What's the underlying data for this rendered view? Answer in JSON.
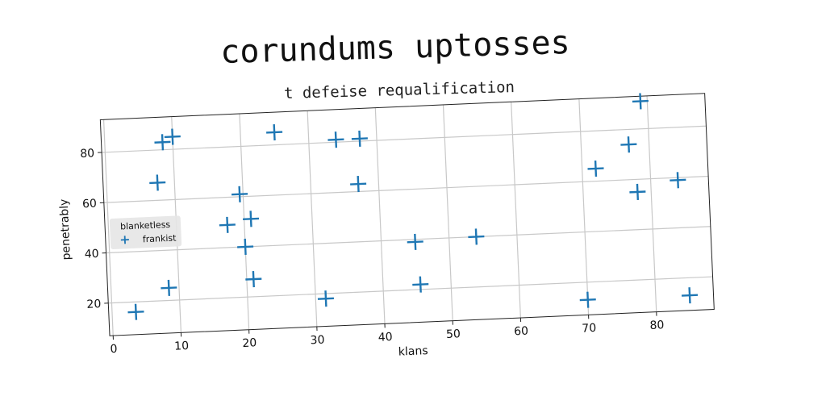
{
  "chart_data": {
    "type": "scatter",
    "title": "corundums uptosses",
    "subtitle": "t defeise requalification",
    "xlabel": "klans",
    "ylabel": "penetrably",
    "xlim": [
      -0.5,
      88.5
    ],
    "ylim": [
      7,
      93
    ],
    "xticks": [
      0,
      10,
      20,
      30,
      40,
      50,
      60,
      70,
      80
    ],
    "yticks": [
      20,
      40,
      60,
      80
    ],
    "grid": true,
    "legend": {
      "title": "blanketless",
      "position": "center-left"
    },
    "series": [
      {
        "name": "frankist",
        "marker": "plus",
        "color": "#1f77b4",
        "points": [
          {
            "x": 3.5,
            "y": 16
          },
          {
            "x": 7.5,
            "y": 67
          },
          {
            "x": 8.5,
            "y": 83
          },
          {
            "x": 10,
            "y": 85
          },
          {
            "x": 8.5,
            "y": 25
          },
          {
            "x": 17.5,
            "y": 49
          },
          {
            "x": 19.5,
            "y": 61
          },
          {
            "x": 20,
            "y": 40
          },
          {
            "x": 21,
            "y": 51
          },
          {
            "x": 21,
            "y": 27
          },
          {
            "x": 25,
            "y": 85
          },
          {
            "x": 31.5,
            "y": 18
          },
          {
            "x": 34,
            "y": 81
          },
          {
            "x": 37.5,
            "y": 81
          },
          {
            "x": 37,
            "y": 63
          },
          {
            "x": 45,
            "y": 39
          },
          {
            "x": 45.5,
            "y": 22
          },
          {
            "x": 54,
            "y": 40
          },
          {
            "x": 70,
            "y": 13
          },
          {
            "x": 72,
            "y": 65
          },
          {
            "x": 77,
            "y": 74
          },
          {
            "x": 78,
            "y": 55
          },
          {
            "x": 79,
            "y": 91
          },
          {
            "x": 84,
            "y": 59
          },
          {
            "x": 85,
            "y": 13
          }
        ]
      }
    ]
  }
}
